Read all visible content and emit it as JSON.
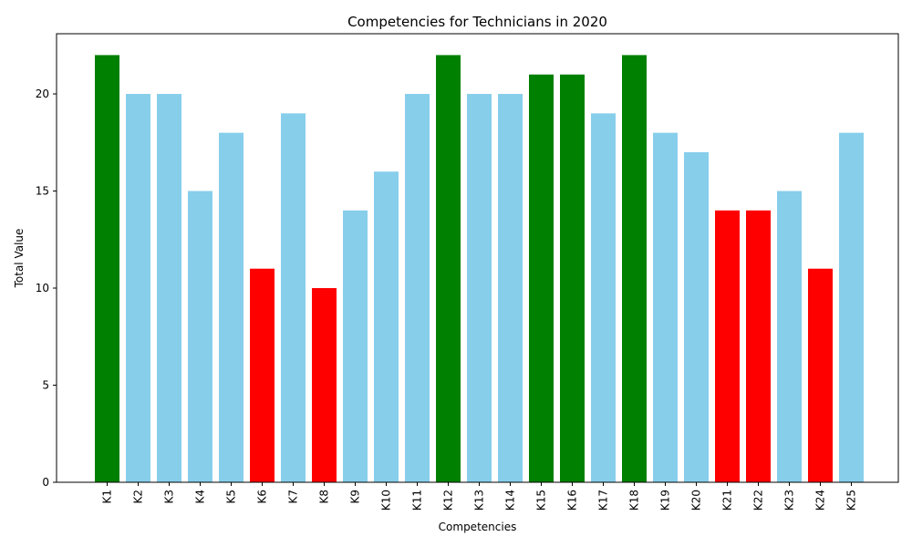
{
  "chart_data": {
    "type": "bar",
    "title": "Competencies for Technicians in 2020",
    "xlabel": "Competencies",
    "ylabel": "Total Value",
    "ylim": [
      0,
      23.1
    ],
    "yticks": [
      0,
      5,
      10,
      15,
      20
    ],
    "categories": [
      "K1",
      "K2",
      "K3",
      "K4",
      "K5",
      "K6",
      "K7",
      "K8",
      "K9",
      "K10",
      "K11",
      "K12",
      "K13",
      "K14",
      "K15",
      "K16",
      "K17",
      "K18",
      "K19",
      "K20",
      "K21",
      "K22",
      "K23",
      "K24",
      "K25"
    ],
    "values": [
      22,
      20,
      20,
      15,
      18,
      11,
      19,
      10,
      14,
      16,
      20,
      22,
      20,
      20,
      21,
      21,
      19,
      22,
      18,
      17,
      14,
      14,
      15,
      11,
      18
    ],
    "bar_colors": [
      "#008000",
      "#87ceeb",
      "#87ceeb",
      "#87ceeb",
      "#87ceeb",
      "#ff0000",
      "#87ceeb",
      "#ff0000",
      "#87ceeb",
      "#87ceeb",
      "#87ceeb",
      "#008000",
      "#87ceeb",
      "#87ceeb",
      "#008000",
      "#008000",
      "#87ceeb",
      "#008000",
      "#87ceeb",
      "#87ceeb",
      "#ff0000",
      "#ff0000",
      "#87ceeb",
      "#ff0000",
      "#87ceeb"
    ],
    "grid": false,
    "legend": "none"
  }
}
